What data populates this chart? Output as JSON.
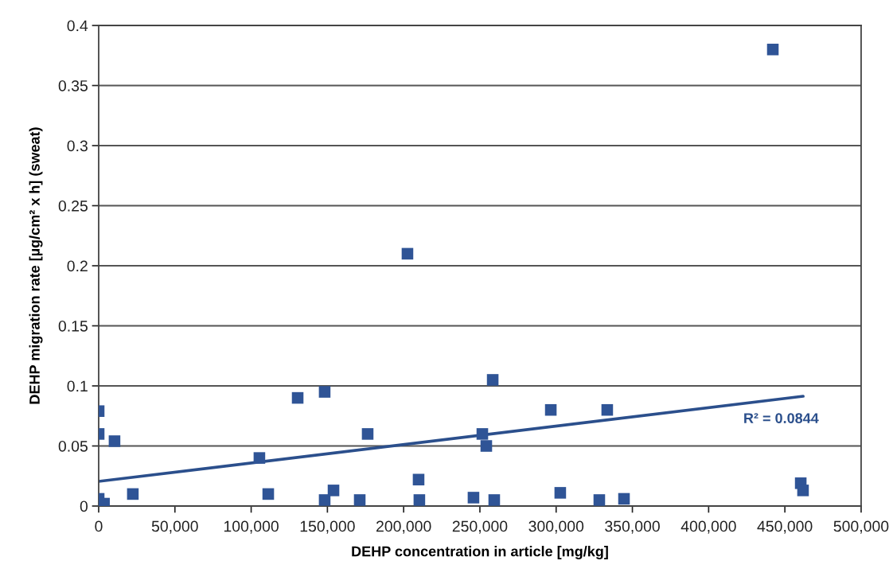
{
  "chart_data": {
    "type": "scatter",
    "xlabel": "DEHP concentration in article [mg/kg]",
    "ylabel": "DEHP migration rate [µg/cm² x h] (sweat)",
    "series": [
      {
        "color": "#2f5496",
        "marker": "square",
        "x": [
          0,
          0,
          10400,
          0,
          3500,
          22400,
          105400,
          111200,
          130500,
          148200,
          148200,
          154000,
          176400,
          171200,
          202500,
          209800,
          210300,
          245800,
          251600,
          254200,
          258400,
          259400,
          296500,
          302700,
          328300,
          333500,
          344500,
          442100,
          460400,
          461900
        ],
        "values": [
          0.079,
          0.06,
          0.054,
          0.006,
          0.002,
          0.01,
          0.04,
          0.01,
          0.09,
          0.095,
          0.005,
          0.013,
          0.06,
          0.005,
          0.21,
          0.022,
          0.005,
          0.007,
          0.06,
          0.05,
          0.105,
          0.005,
          0.08,
          0.011,
          0.005,
          0.08,
          0.006,
          0.38,
          0.019,
          0.013
        ]
      },
      {
        "type": "line",
        "color": "#2b4f8c",
        "x": [
          0,
          462000
        ],
        "values": [
          0.0205,
          0.0914
        ]
      }
    ],
    "annotations": [
      "R² = 0.0844"
    ],
    "xlim": [
      0,
      500000
    ],
    "xticks": [
      0,
      {
        "value": 50000,
        "label": "50,000"
      },
      {
        "value": 100000,
        "label": "100,000"
      },
      {
        "value": 150000,
        "label": "150,000"
      },
      {
        "value": 200000,
        "label": "200,000"
      },
      {
        "value": 250000,
        "label": "250,000"
      },
      {
        "value": 300000,
        "label": "300,000"
      },
      {
        "value": 350000,
        "label": "350,000"
      },
      {
        "value": 400000,
        "label": "400,000"
      },
      {
        "value": 450000,
        "label": "450,000"
      },
      {
        "value": 500000,
        "label": "500,000"
      }
    ],
    "ylim": [
      0,
      0.4
    ],
    "yticks": [
      0,
      0.05,
      0.1,
      0.15,
      0.2,
      0.25,
      0.3,
      0.35,
      0.4
    ],
    "grid": "y"
  }
}
